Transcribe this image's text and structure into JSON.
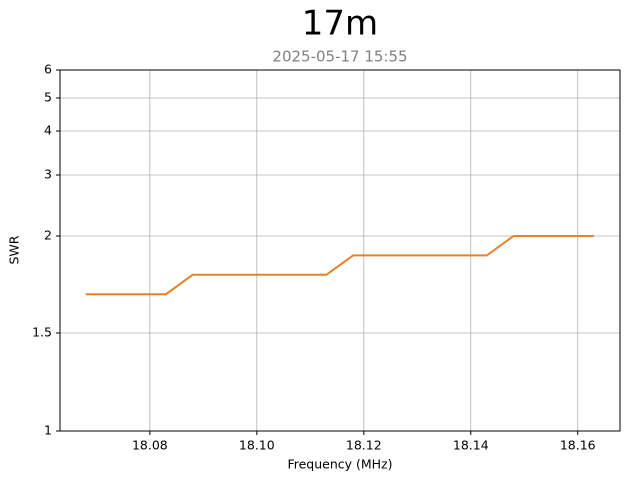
{
  "chart_data": {
    "type": "line",
    "title": "17m",
    "subtitle": "2025-05-17 15:55",
    "x_label": "Frequency (MHz)",
    "y_label": "SWR",
    "x": [
      18.068,
      18.073,
      18.078,
      18.083,
      18.088,
      18.093,
      18.098,
      18.103,
      18.108,
      18.113,
      18.118,
      18.123,
      18.128,
      18.133,
      18.138,
      18.143,
      18.148,
      18.153,
      18.158,
      18.163
    ],
    "series": [
      {
        "color": "#e8822a",
        "values": [
          1.7,
          1.7,
          1.7,
          1.7,
          1.8,
          1.8,
          1.8,
          1.8,
          1.8,
          1.8,
          1.9,
          1.9,
          1.9,
          1.9,
          1.9,
          1.9,
          2,
          2,
          2,
          2
        ]
      }
    ],
    "xlim": [
      18.0632,
      18.1679
    ],
    "xticks": [
      {
        "value": 18.08,
        "label": "18.08"
      },
      {
        "value": 18.1,
        "label": "18.10"
      },
      {
        "value": 18.12,
        "label": "18.12"
      },
      {
        "value": 18.14,
        "label": "18.14"
      },
      {
        "value": 18.16,
        "label": "18.16"
      }
    ],
    "ylim": [
      1,
      6
    ],
    "yticks": [
      1,
      1.5,
      2,
      3,
      4,
      5,
      6
    ],
    "grid": true
  }
}
